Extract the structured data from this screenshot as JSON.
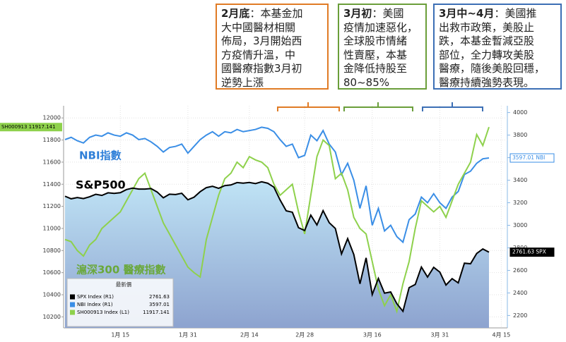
{
  "callouts": [
    {
      "heading": "2月底",
      "lines": [
        "：本基金加",
        "大中國醫材相關",
        "佈局，3月開始西",
        "方疫情升溫，中",
        "國醫療指數3月初",
        "逆勢上漲"
      ],
      "color": "#e07b25"
    },
    {
      "heading": "3月初",
      "lines": [
        "：美國",
        "疫情加速惡化，",
        "全球股市情緒",
        "性賣壓，本基",
        "金降低持股至",
        "80~85%"
      ],
      "color": "#6a9e3a"
    },
    {
      "heading": "3月中~4月",
      "lines": [
        "：美國推",
        "出救市政策，美股止",
        "跌，本基金暫減亞股",
        "部位，全力轉攻美股",
        "醫療，隨後美股回穩，",
        "醫療持續強勢表現。"
      ],
      "color": "#3c6fb5"
    }
  ],
  "chart_data": {
    "type": "line",
    "legend_title": "最新價",
    "annotations": [
      {
        "text": "NBI指數",
        "color": "#2f7fd8"
      },
      {
        "text": "S&P500",
        "color": "#000000"
      },
      {
        "text": "滬深300 醫療指數",
        "color": "#6aa83a"
      }
    ],
    "categories": [
      null,
      null,
      null,
      null,
      null,
      null,
      null,
      null,
      null,
      "1月 15",
      null,
      null,
      null,
      null,
      null,
      null,
      null,
      null,
      null,
      null,
      "1月 31",
      null,
      null,
      null,
      null,
      null,
      null,
      null,
      null,
      null,
      "2月 14",
      null,
      null,
      null,
      null,
      null,
      null,
      null,
      null,
      "2月 28",
      null,
      null,
      null,
      null,
      null,
      null,
      null,
      null,
      null,
      null,
      "3月 16",
      null,
      null,
      null,
      null,
      null,
      null,
      null,
      null,
      null,
      null,
      "3月 31",
      null,
      null,
      null,
      null,
      null,
      null,
      null,
      null,
      null,
      "4月 15"
    ],
    "series": [
      {
        "name": "SPX Index (R1)",
        "tag": "SPX",
        "color": "#000000",
        "style": "area",
        "axis": "y2",
        "values": [
          3258,
          3235,
          3246,
          3237,
          3253,
          3275,
          3265,
          3288,
          3283,
          3289,
          3317,
          3330,
          3321,
          3321,
          3326,
          3295,
          3244,
          3276,
          3273,
          3284,
          3226,
          3249,
          3298,
          3334,
          3346,
          3328,
          3352,
          3358,
          3379,
          3374,
          3380,
          3370,
          3386,
          3373,
          3338,
          3225,
          3128,
          3116,
          2979,
          2954,
          3090,
          3003,
          3130,
          3023,
          2972,
          2746,
          2882,
          2741,
          2481,
          2711,
          2386,
          2529,
          2398,
          2409,
          2305,
          2237,
          2447,
          2475,
          2630,
          2541,
          2627,
          2585,
          2470,
          2527,
          2489,
          2664,
          2659,
          2750,
          2790,
          2761.63,
          null,
          null
        ]
      },
      {
        "name": "NBI Index (R1)",
        "tag": "NBI",
        "color": "#3a8ee6",
        "style": "line",
        "axis": "y2",
        "values": [
          3760,
          3780,
          3750,
          3730,
          3780,
          3800,
          3790,
          3820,
          3800,
          3790,
          3820,
          3800,
          3760,
          3770,
          3740,
          3700,
          3650,
          3690,
          3700,
          3720,
          3640,
          3700,
          3760,
          3800,
          3830,
          3790,
          3830,
          3820,
          3850,
          3830,
          3840,
          3850,
          3870,
          3860,
          3830,
          3760,
          3700,
          3720,
          3600,
          3620,
          3800,
          3750,
          3840,
          3720,
          3650,
          3450,
          3550,
          3400,
          3150,
          3350,
          3000,
          3150,
          2950,
          3000,
          2900,
          2850,
          3050,
          3100,
          3250,
          3200,
          3280,
          3200,
          3150,
          3250,
          3300,
          3450,
          3480,
          3550,
          3590,
          3597.01,
          null,
          null
        ]
      },
      {
        "name": "SH000913 Index (L1)",
        "tag": "SH000913",
        "color": "#8ed14c",
        "style": "line",
        "axis": "y",
        "values": [
          10900,
          10880,
          10800,
          10750,
          10850,
          10900,
          11000,
          11050,
          11100,
          11150,
          11250,
          11350,
          11450,
          11500,
          11350,
          11200,
          11050,
          10950,
          10850,
          10750,
          10650,
          10600,
          10560,
          10900,
          11100,
          11300,
          11450,
          11500,
          11600,
          11550,
          11650,
          11620,
          11600,
          11550,
          11400,
          11300,
          11350,
          11400,
          11150,
          10950,
          11300,
          11650,
          11800,
          11750,
          11450,
          11500,
          11350,
          11100,
          11000,
          10950,
          10700,
          10450,
          10300,
          10400,
          10250,
          10500,
          10700,
          11000,
          11250,
          11200,
          11150,
          11200,
          11100,
          11250,
          11400,
          11500,
          11600,
          11850,
          11750,
          11917.141,
          null,
          null
        ]
      }
    ],
    "ylim": [
      10100,
      12110
    ],
    "yticks": [
      10200,
      10400,
      10600,
      10800,
      11000,
      11200,
      11400,
      11600,
      11800,
      12000
    ],
    "y2lim": [
      2090,
      4060
    ],
    "y2ticks": [
      2200,
      2400,
      2600,
      2800,
      3000,
      3200,
      3400,
      3600,
      3800,
      4000
    ],
    "grid": true
  }
}
